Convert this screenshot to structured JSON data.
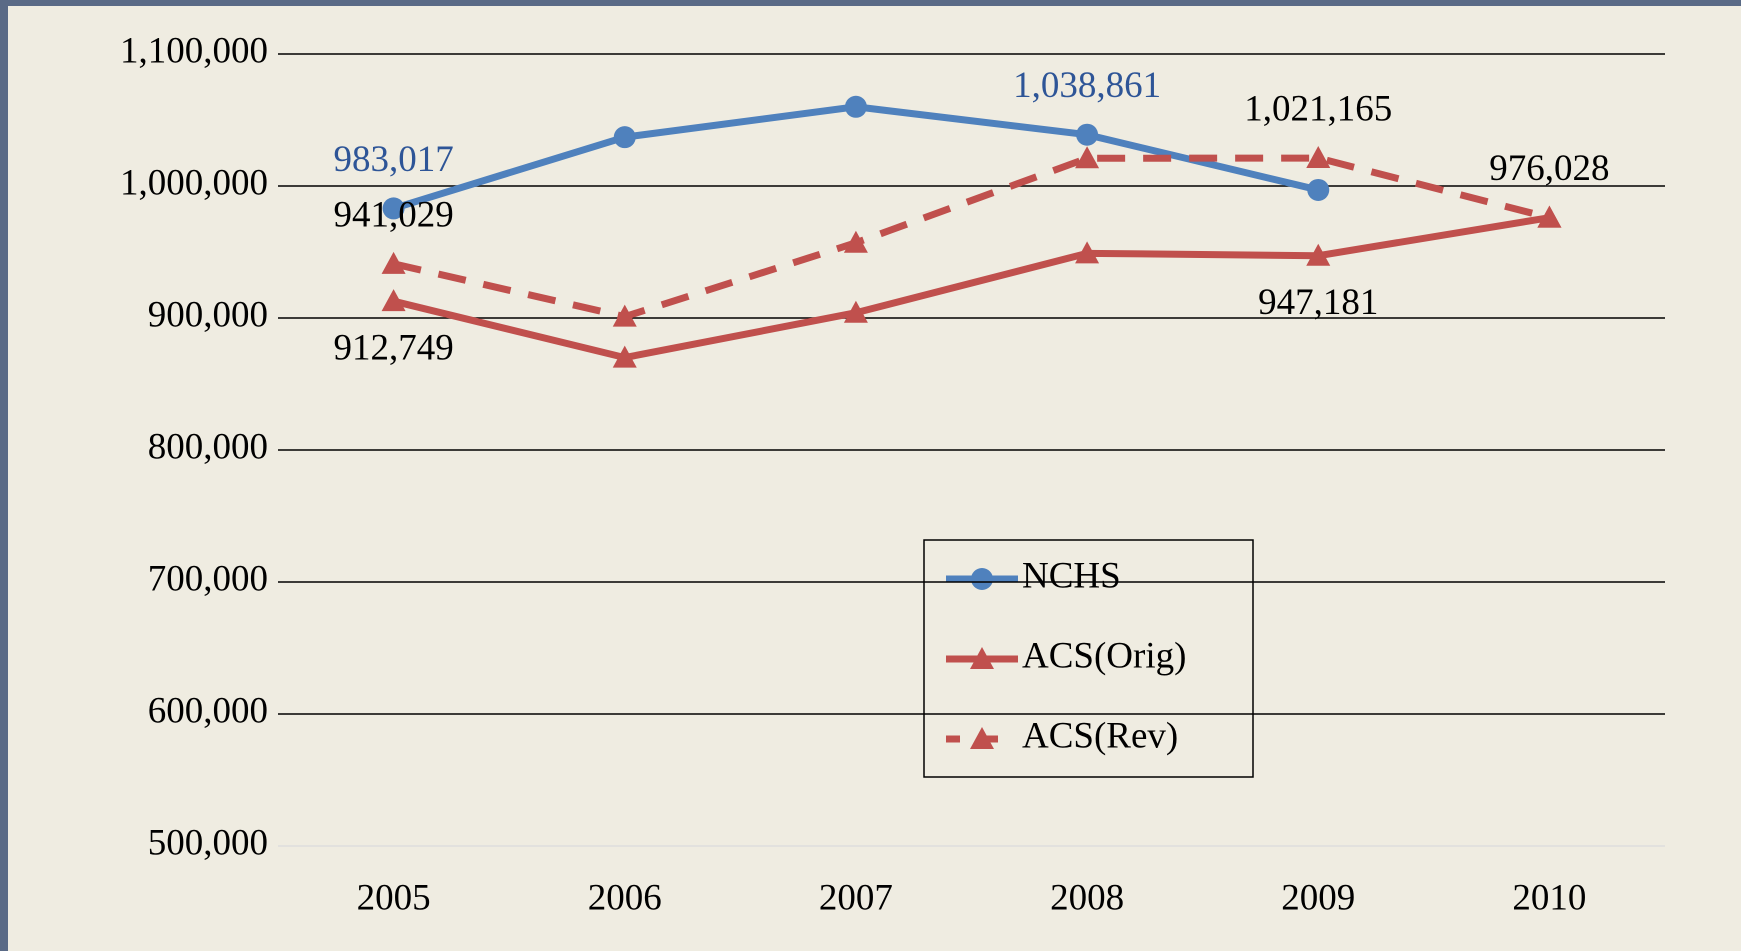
{
  "chart_data": {
    "type": "line",
    "categories": [
      "2005",
      "2006",
      "2007",
      "2008",
      "2009",
      "2010"
    ],
    "series": [
      {
        "name": "NCHS",
        "color": "#4f81bd",
        "marker": "circle",
        "dashed": false,
        "label_color": "#2e5597",
        "values": [
          983017,
          1037000,
          1060000,
          1038861,
          997000,
          null
        ],
        "value_labels": [
          "983,017",
          null,
          null,
          "1,038,861",
          null,
          null
        ]
      },
      {
        "name": "ACS(Orig)",
        "color": "#c0504d",
        "marker": "triangle",
        "dashed": false,
        "label_color": "#000000",
        "values": [
          912749,
          870000,
          904000,
          949000,
          947181,
          976028
        ],
        "value_labels": [
          "912,749",
          null,
          null,
          null,
          "947,181",
          null
        ]
      },
      {
        "name": "ACS(Rev)",
        "color": "#c0504d",
        "marker": "triangle",
        "dashed": true,
        "label_color": "#000000",
        "values": [
          941029,
          901000,
          957000,
          1021000,
          1021165,
          976028
        ],
        "value_labels": [
          "941,029",
          null,
          null,
          null,
          "1,021,165",
          "976,028"
        ]
      }
    ],
    "ylim": [
      500000,
      1100000
    ],
    "yticks": [
      {
        "value": 500000,
        "label": "500,000"
      },
      {
        "value": 600000,
        "label": "600,000"
      },
      {
        "value": 700000,
        "label": "700,000"
      },
      {
        "value": 800000,
        "label": "800,000"
      },
      {
        "value": 900000,
        "label": "900,000"
      },
      {
        "value": 1000000,
        "label": "1,000,000"
      },
      {
        "value": 1100000,
        "label": "1,100,000"
      }
    ],
    "grid": true
  }
}
